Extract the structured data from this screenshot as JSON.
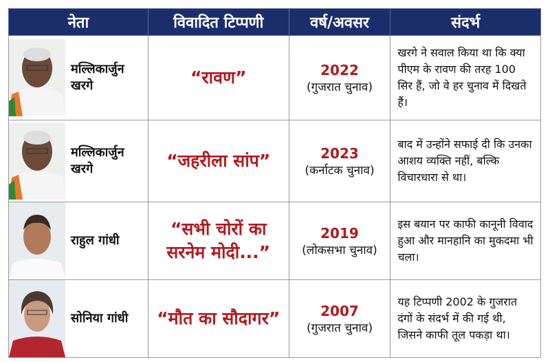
{
  "colors": {
    "header_bg": "#1c2d6b",
    "accent_red": "#b3191e"
  },
  "headers": [
    "नेता",
    "विवादित टिप्पणी",
    "वर्ष/अवसर",
    "संदर्भ"
  ],
  "rows": [
    {
      "leader": "मल्लिकार्जुन खरगे",
      "quote": "“रावण”",
      "year": "2022",
      "occasion": "(गुजरात चुनाव)",
      "context": "खरगे ने सवाल किया था कि क्या पीएम के रावण की तरह 100 सिर हैं, जो वे हर चुनाव में दिखते हैं।"
    },
    {
      "leader": "मल्लिकार्जुन खरगे",
      "quote": "“जहरीला सांप”",
      "year": "2023",
      "occasion": "(कर्नाटक चुनाव)",
      "context": "बाद में उन्होंने सफाई दी कि उनका आशय व्यक्ति नहीं, बल्कि विचारधारा से था।"
    },
    {
      "leader": "राहुल गांधी",
      "quote": "“सभी चोरों का सरनेम मोदी...”",
      "year": "2019",
      "occasion": "(लोकसभा चुनाव)",
      "context": "इस बयान पर काफी कानूनी विवाद हुआ और मानहानि का मुकदमा भी चला।"
    },
    {
      "leader": "सोनिया गांधी",
      "quote": "“मौत का सौदागर”",
      "year": "2007",
      "occasion": "(गुजरात चुनाव)",
      "context": "यह टिप्पणी 2002 के गुजरात दंगों के संदर्भ में की गई थी, जिसने काफी तूल पकड़ा था।"
    }
  ]
}
